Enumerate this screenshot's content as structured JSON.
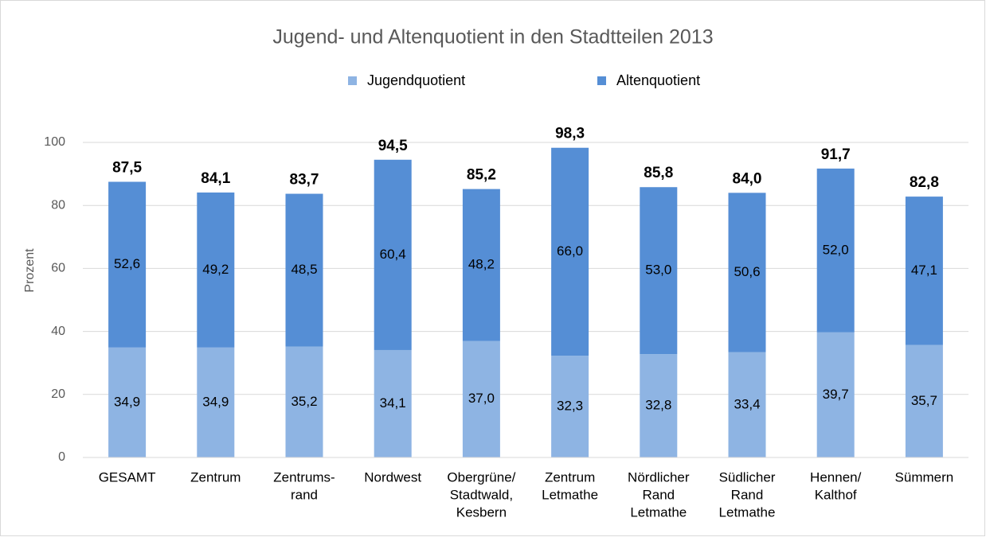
{
  "chart_data": {
    "type": "stacked_bar",
    "title": "Jugend- und Altenquotient in den Stadtteilen 2013",
    "y_label": "Prozent",
    "categories": [
      [
        "GESAMT"
      ],
      [
        "Zentrum"
      ],
      [
        "Zentrums-",
        "rand"
      ],
      [
        "Nordwest"
      ],
      [
        "Obergrüne/",
        "Stadtwald,",
        "Kesbern"
      ],
      [
        "Zentrum",
        "Letmathe"
      ],
      [
        "Nördlicher",
        "Rand",
        "Letmathe"
      ],
      [
        "Südlicher",
        "Rand",
        "Letmathe"
      ],
      [
        "Hennen/",
        "Kalthof"
      ],
      [
        "Sümmern"
      ]
    ],
    "series": [
      {
        "name": "Jugendquotient",
        "color": "#8eb4e3",
        "values": [
          34.9,
          34.9,
          35.2,
          34.1,
          37.0,
          32.3,
          32.8,
          33.4,
          39.7,
          35.7
        ],
        "value_labels": [
          "34,9",
          "34,9",
          "35,2",
          "34,1",
          "37,0",
          "32,3",
          "32,8",
          "33,4",
          "39,7",
          "35,7"
        ]
      },
      {
        "name": "Altenquotient",
        "color": "#558ed5",
        "values": [
          52.6,
          49.2,
          48.5,
          60.4,
          48.2,
          66.0,
          53.0,
          50.6,
          52.0,
          47.1
        ],
        "value_labels": [
          "52,6",
          "49,2",
          "48,5",
          "60,4",
          "48,2",
          "66,0",
          "53,0",
          "50,6",
          "52,0",
          "47,1"
        ]
      }
    ],
    "totals": [
      87.5,
      84.1,
      83.7,
      94.5,
      85.2,
      98.3,
      85.8,
      84.0,
      91.7,
      82.8
    ],
    "total_labels": [
      "87,5",
      "84,1",
      "83,7",
      "94,5",
      "85,2",
      "98,3",
      "85,8",
      "84,0",
      "91,7",
      "82,8"
    ],
    "ylim": [
      0,
      100
    ],
    "yticks": [
      0,
      20,
      40,
      60,
      80,
      100
    ],
    "grid": true,
    "legend": "top"
  }
}
